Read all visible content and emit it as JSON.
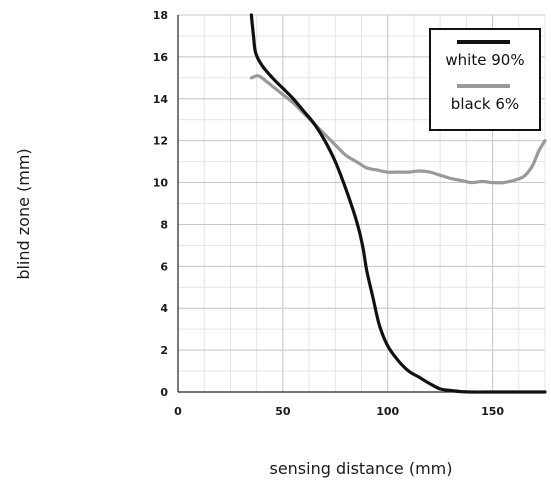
{
  "chart_data": {
    "type": "line",
    "title": "",
    "xlabel": "sensing distance (mm)",
    "ylabel": "blind zone (mm)",
    "xlim": [
      0,
      175
    ],
    "ylim": [
      0,
      18
    ],
    "x_ticks": [
      0,
      50,
      100,
      150
    ],
    "y_ticks": [
      0,
      2,
      4,
      6,
      8,
      10,
      12,
      14,
      16,
      18
    ],
    "grid": true,
    "legend_position": "top-right",
    "series": [
      {
        "name": "white 90%",
        "color": "#111111",
        "points": [
          [
            35,
            18
          ],
          [
            36,
            17
          ],
          [
            37,
            16.2
          ],
          [
            40,
            15.6
          ],
          [
            45,
            15
          ],
          [
            50,
            14.5
          ],
          [
            55,
            14
          ],
          [
            60,
            13.4
          ],
          [
            65,
            12.8
          ],
          [
            70,
            12
          ],
          [
            75,
            11
          ],
          [
            80,
            9.7
          ],
          [
            85,
            8.2
          ],
          [
            88,
            7
          ],
          [
            90,
            5.8
          ],
          [
            93,
            4.5
          ],
          [
            96,
            3.2
          ],
          [
            100,
            2.2
          ],
          [
            105,
            1.5
          ],
          [
            110,
            1
          ],
          [
            115,
            0.7
          ],
          [
            120,
            0.4
          ],
          [
            125,
            0.15
          ],
          [
            130,
            0.07
          ],
          [
            135,
            0.02
          ],
          [
            140,
            0
          ],
          [
            150,
            0
          ],
          [
            160,
            0
          ],
          [
            175,
            0
          ]
        ]
      },
      {
        "name": "black 6%",
        "color": "#999999",
        "points": [
          [
            35,
            15
          ],
          [
            38,
            15.1
          ],
          [
            40,
            15
          ],
          [
            45,
            14.6
          ],
          [
            50,
            14.2
          ],
          [
            55,
            13.8
          ],
          [
            60,
            13.3
          ],
          [
            65,
            12.8
          ],
          [
            70,
            12.3
          ],
          [
            75,
            11.8
          ],
          [
            80,
            11.3
          ],
          [
            85,
            11
          ],
          [
            90,
            10.7
          ],
          [
            95,
            10.6
          ],
          [
            100,
            10.5
          ],
          [
            105,
            10.5
          ],
          [
            110,
            10.5
          ],
          [
            115,
            10.55
          ],
          [
            120,
            10.5
          ],
          [
            125,
            10.35
          ],
          [
            130,
            10.2
          ],
          [
            135,
            10.1
          ],
          [
            140,
            10
          ],
          [
            145,
            10.05
          ],
          [
            150,
            10
          ],
          [
            155,
            10
          ],
          [
            160,
            10.1
          ],
          [
            165,
            10.3
          ],
          [
            169,
            10.8
          ],
          [
            172,
            11.5
          ],
          [
            175,
            12
          ]
        ]
      }
    ]
  }
}
